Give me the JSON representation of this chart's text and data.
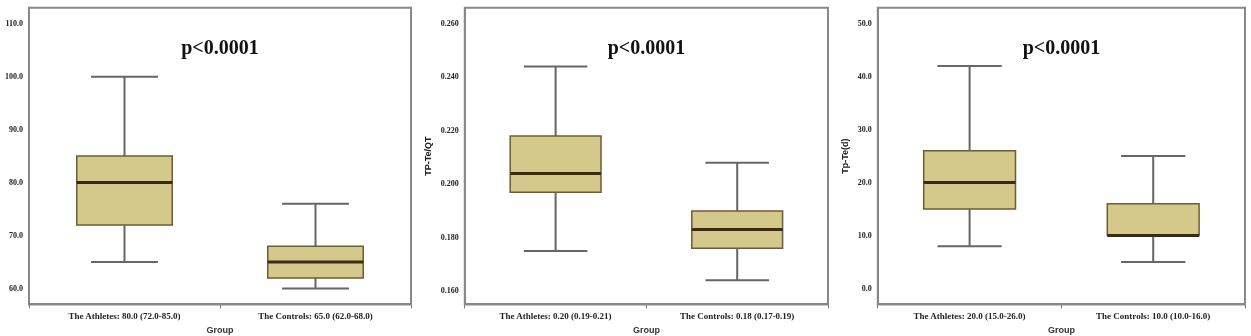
{
  "chart_data": [
    {
      "type": "box",
      "categories": [
        "The Athletes: 80.0 (72.0-85.0)",
        "The Controls: 65.0 (62.0-68.0)"
      ],
      "xlabel": "Group",
      "color": "#d4c88a",
      "boxes": [
        {
          "low": 65,
          "q1": 72,
          "median": 80,
          "q3": 85,
          "high": 100
        },
        {
          "low": 60,
          "q1": 62,
          "median": 65,
          "q3": 68,
          "high": 76
        }
      ],
      "ylim": [
        57,
        113
      ],
      "yticks": [
        {
          "value": 60,
          "label": "60.0"
        },
        {
          "value": 70,
          "label": "70.0"
        },
        {
          "value": 80,
          "label": "80.0"
        },
        {
          "value": 90,
          "label": "90.0"
        },
        {
          "value": 100,
          "label": "100.0"
        },
        {
          "value": 110,
          "label": "110.0"
        }
      ],
      "annotations": [
        "p<0.0001"
      ]
    },
    {
      "type": "box",
      "categories": [
        "The Athletes: 0.20 (0.19-0.21)",
        "The Controls: 0.18 (0.17-0.19)"
      ],
      "xlabel": "Group",
      "ylabel": "TP-Te/QT",
      "color": "#d4c88a",
      "boxes": [
        {
          "low": 0.175,
          "q1": 0.197,
          "median": 0.204,
          "q3": 0.218,
          "high": 0.244
        },
        {
          "low": 0.164,
          "q1": 0.176,
          "median": 0.183,
          "q3": 0.19,
          "high": 0.208
        }
      ],
      "ylim": [
        0.155,
        0.266
      ],
      "yticks": [
        {
          "value": 0.16,
          "label": "0.160"
        },
        {
          "value": 0.18,
          "label": "0.180"
        },
        {
          "value": 0.2,
          "label": "0.200"
        },
        {
          "value": 0.22,
          "label": "0.220"
        },
        {
          "value": 0.24,
          "label": "0.240"
        },
        {
          "value": 0.26,
          "label": "0.260"
        }
      ],
      "annotations": [
        "p<0.0001"
      ]
    },
    {
      "type": "box",
      "categories": [
        "The Athletes: 20.0 (15.0-26.0)",
        "The Controls: 10.0 (10.0-16.0)"
      ],
      "xlabel": "Group",
      "ylabel": "Tp-Te(d)",
      "color": "#d4c88a",
      "boxes": [
        {
          "low": 8,
          "q1": 15,
          "median": 20,
          "q3": 26,
          "high": 42
        },
        {
          "low": 5,
          "q1": 10,
          "median": 10,
          "q3": 16,
          "high": 25
        }
      ],
      "ylim": [
        -3,
        53
      ],
      "yticks": [
        {
          "value": 0,
          "label": "0.0"
        },
        {
          "value": 10,
          "label": "10.0"
        },
        {
          "value": 20,
          "label": "20.0"
        },
        {
          "value": 30,
          "label": "30.0"
        },
        {
          "value": 40,
          "label": "40.0"
        },
        {
          "value": 50,
          "label": "50.0"
        }
      ],
      "annotations": [
        "p<0.0001"
      ]
    }
  ]
}
